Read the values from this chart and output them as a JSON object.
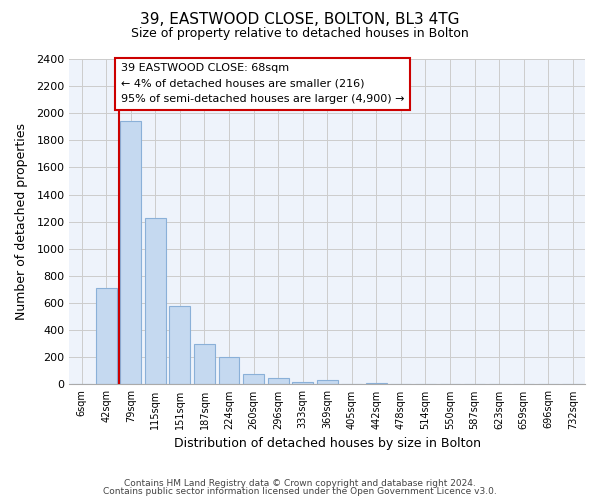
{
  "title": "39, EASTWOOD CLOSE, BOLTON, BL3 4TG",
  "subtitle": "Size of property relative to detached houses in Bolton",
  "xlabel": "Distribution of detached houses by size in Bolton",
  "ylabel": "Number of detached properties",
  "bar_labels": [
    "6sqm",
    "42sqm",
    "79sqm",
    "115sqm",
    "151sqm",
    "187sqm",
    "224sqm",
    "260sqm",
    "296sqm",
    "333sqm",
    "369sqm",
    "405sqm",
    "442sqm",
    "478sqm",
    "514sqm",
    "550sqm",
    "587sqm",
    "623sqm",
    "659sqm",
    "696sqm",
    "732sqm"
  ],
  "bar_values": [
    0,
    710,
    1940,
    1230,
    580,
    300,
    200,
    80,
    45,
    15,
    30,
    5,
    10,
    0,
    0,
    0,
    0,
    0,
    0,
    0,
    0
  ],
  "bar_color": "#c5d9f0",
  "bar_edge_color": "#8ab0d8",
  "highlight_line_color": "#cc0000",
  "annotation_line1": "39 EASTWOOD CLOSE: 68sqm",
  "annotation_line2": "← 4% of detached houses are smaller (216)",
  "annotation_line3": "95% of semi-detached houses are larger (4,900) →",
  "annotation_box_color": "#ffffff",
  "annotation_box_edge_color": "#cc0000",
  "ylim": [
    0,
    2400
  ],
  "yticks": [
    0,
    200,
    400,
    600,
    800,
    1000,
    1200,
    1400,
    1600,
    1800,
    2000,
    2200,
    2400
  ],
  "grid_color": "#cccccc",
  "background_color": "#ffffff",
  "footer_line1": "Contains HM Land Registry data © Crown copyright and database right 2024.",
  "footer_line2": "Contains public sector information licensed under the Open Government Licence v3.0."
}
